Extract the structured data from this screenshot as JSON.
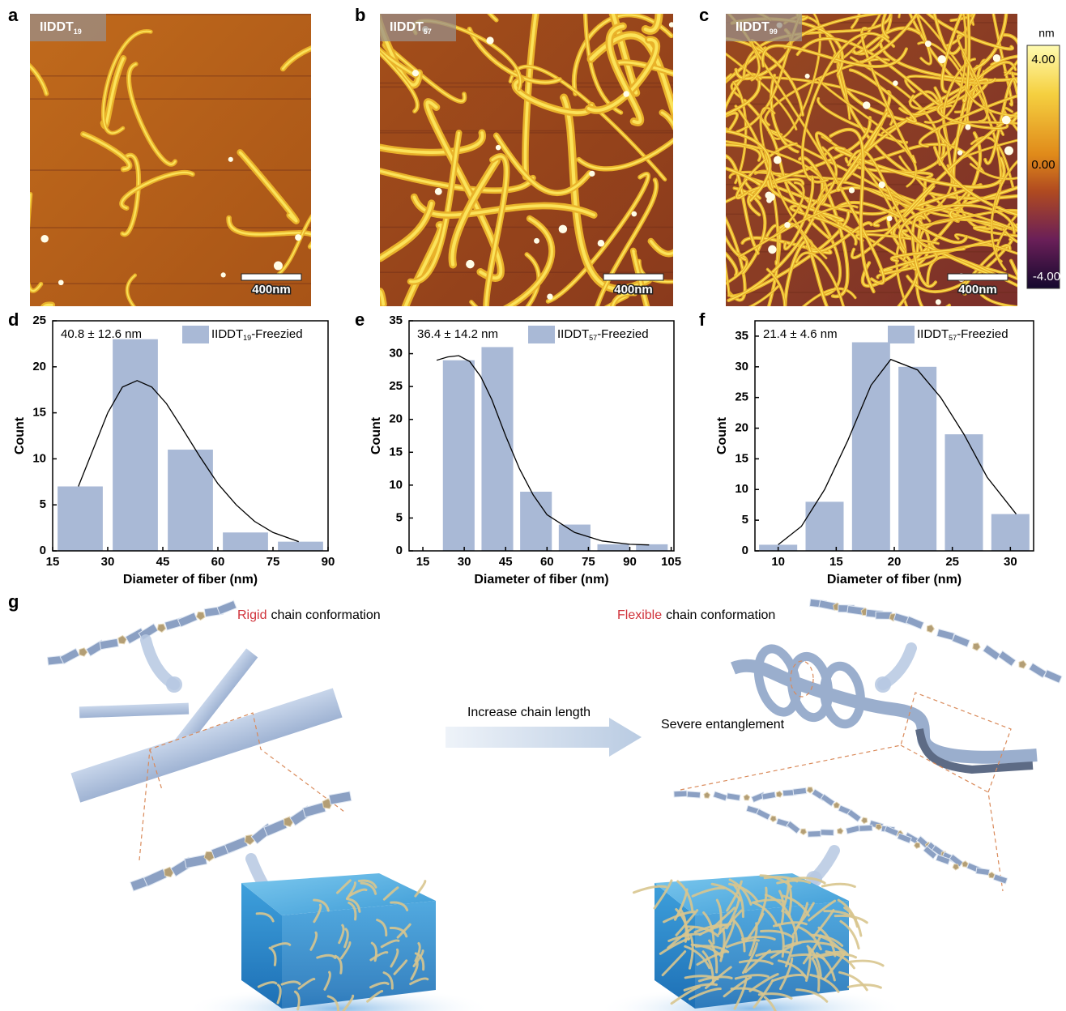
{
  "panel_labels": [
    "a",
    "b",
    "c",
    "d",
    "e",
    "f",
    "g"
  ],
  "afm_images": [
    {
      "sample": {
        "base": "IIDDT",
        "sub": "19"
      },
      "scale_bar": "400nm"
    },
    {
      "sample": {
        "base": "IIDDT",
        "sub": "57"
      },
      "scale_bar": "400nm"
    },
    {
      "sample": {
        "base": "IIDDT",
        "sub": "99"
      },
      "scale_bar": "400nm"
    }
  ],
  "colorbar": {
    "unit": "nm",
    "labels": [
      "4.00",
      "0.00",
      "-4.00"
    ]
  },
  "chart_data": [
    {
      "type": "histogram",
      "annotation": "40.8 ± 12.6 nm",
      "legend": [
        "IIDDT",
        "19",
        "-Freezied"
      ],
      "color": "#a9b9d6",
      "bins": [
        15,
        30,
        45,
        60,
        75,
        90
      ],
      "values": [
        7,
        23,
        11,
        2,
        1
      ],
      "fit": {
        "x": [
          22,
          26,
          30,
          34,
          38,
          42,
          46,
          50,
          55,
          60,
          65,
          70,
          75,
          82
        ],
        "values": [
          7,
          11,
          15,
          17.8,
          18.5,
          17.8,
          16,
          13.5,
          10.3,
          7.3,
          5,
          3.2,
          2,
          1
        ]
      },
      "xlim": [
        15,
        90
      ],
      "xticks": [
        15,
        30,
        45,
        60,
        75,
        90
      ],
      "ylim": [
        0,
        25
      ],
      "yticks": [
        0,
        5,
        10,
        15,
        20,
        25
      ],
      "x_label": "Diameter of fiber (nm)",
      "y_label": "Count"
    },
    {
      "type": "histogram",
      "annotation": "36.4 ± 14.2 nm",
      "legend": [
        "IIDDT",
        "57",
        "-Freezied"
      ],
      "color": "#a9b9d6",
      "bins": [
        21,
        35,
        49,
        63,
        77,
        91,
        105
      ],
      "values": [
        29,
        31,
        9,
        4,
        1,
        1
      ],
      "fit": {
        "x": [
          20,
          24,
          28,
          32,
          36,
          40,
          45,
          50,
          55,
          60,
          70,
          80,
          90,
          97
        ],
        "values": [
          29,
          29.5,
          29.7,
          28.8,
          26.5,
          23,
          17.5,
          12.5,
          8.5,
          5.5,
          2.8,
          1.5,
          1,
          0.9
        ]
      },
      "xlim": [
        10,
        106
      ],
      "xticks": [
        15,
        30,
        45,
        60,
        75,
        90,
        105
      ],
      "ylim": [
        0,
        35
      ],
      "yticks": [
        0,
        5,
        10,
        15,
        20,
        25,
        30,
        35
      ],
      "x_label": "Diameter of fiber (nm)",
      "y_label": "Count"
    },
    {
      "type": "histogram",
      "annotation": "21.4 ± 4.6 nm",
      "legend": [
        "IIDDT",
        "57",
        "-Freezied"
      ],
      "color": "#a9b9d6",
      "bins": [
        8,
        12,
        16,
        20,
        24,
        28,
        32
      ],
      "values": [
        1,
        8,
        34,
        30,
        19,
        6
      ],
      "fit": {
        "x": [
          10,
          12,
          14,
          16,
          18,
          19.7,
          22,
          24,
          26,
          28,
          30.5
        ],
        "values": [
          1,
          4,
          10,
          18,
          27,
          31.2,
          29.5,
          25,
          19,
          12,
          6
        ]
      },
      "xlim": [
        8,
        32
      ],
      "xticks": [
        10,
        15,
        20,
        25,
        30
      ],
      "ylim": [
        0,
        37.5
      ],
      "yticks": [
        0,
        5,
        10,
        15,
        20,
        25,
        30,
        35
      ],
      "x_label": "Diameter of fiber (nm)",
      "y_label": "Count"
    }
  ],
  "schematic": {
    "left_title": {
      "highlight": "Rigid",
      "rest": "chain conformation"
    },
    "right_title": {
      "highlight": "Flexible",
      "rest": "chain conformation"
    },
    "arrow_label": "Increase chain length",
    "entanglement_label": "Severe entanglement"
  }
}
